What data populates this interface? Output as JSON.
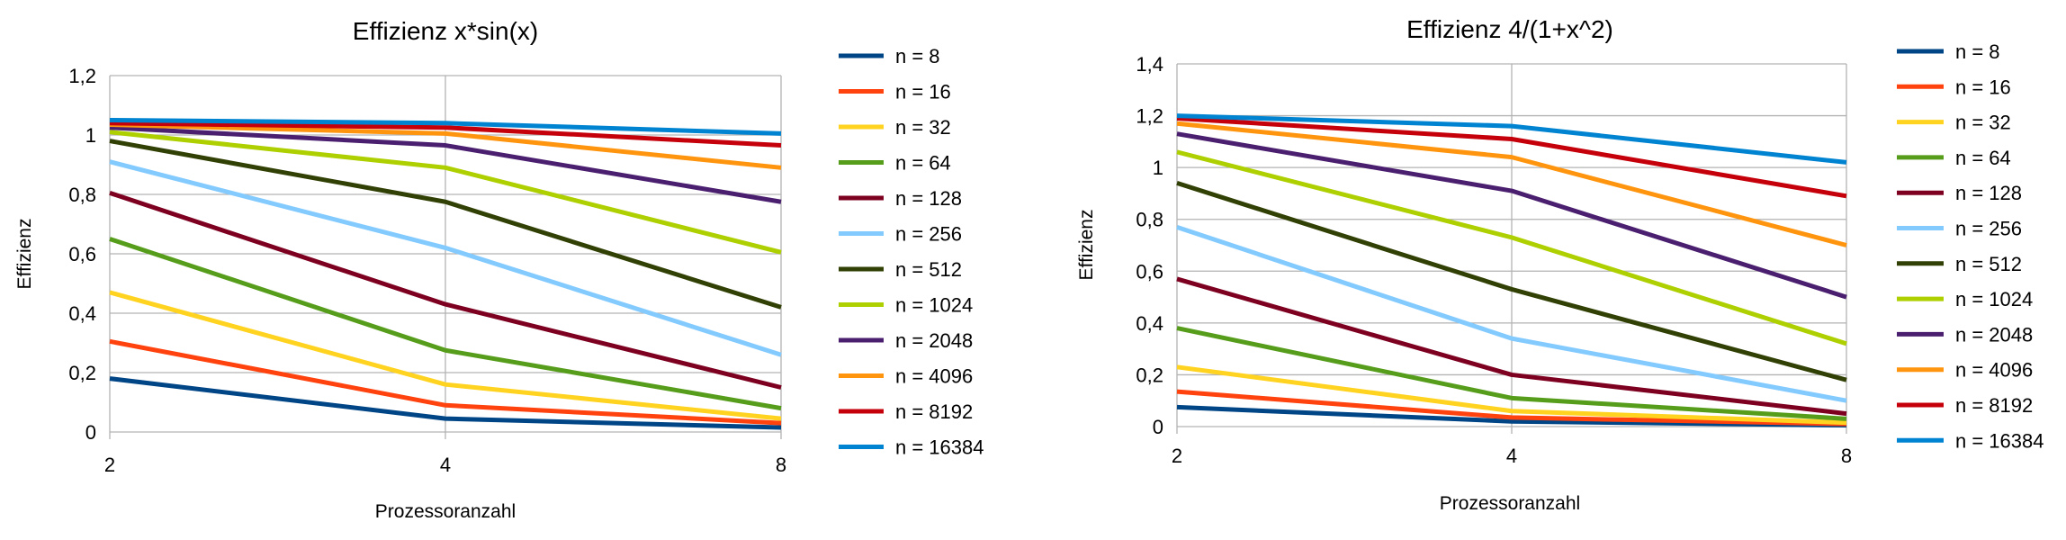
{
  "chart_data": [
    {
      "type": "line",
      "title": "Effizienz x*sin(x)",
      "xlabel": "Prozessoranzahl",
      "ylabel": "Effizienz",
      "categories": [
        "2",
        "4",
        "8"
      ],
      "ylim": [
        0,
        1.2
      ],
      "yticks": [
        "0",
        "0,2",
        "0,4",
        "0,6",
        "0,8",
        "1",
        "1,2"
      ],
      "grid": true,
      "legend": "right",
      "series": [
        {
          "name": "n = 8",
          "color": "#004586",
          "values": [
            0.18,
            0.045,
            0.015
          ]
        },
        {
          "name": "n = 16",
          "color": "#ff420e",
          "values": [
            0.305,
            0.09,
            0.03
          ]
        },
        {
          "name": "n = 32",
          "color": "#ffd320",
          "values": [
            0.47,
            0.16,
            0.045
          ]
        },
        {
          "name": "n = 64",
          "color": "#579d1c",
          "values": [
            0.65,
            0.275,
            0.08
          ]
        },
        {
          "name": "n = 128",
          "color": "#7e0021",
          "values": [
            0.805,
            0.43,
            0.15
          ]
        },
        {
          "name": "n = 256",
          "color": "#83caff",
          "values": [
            0.91,
            0.62,
            0.26
          ]
        },
        {
          "name": "n = 512",
          "color": "#314004",
          "values": [
            0.98,
            0.775,
            0.42
          ]
        },
        {
          "name": "n = 1024",
          "color": "#aecf00",
          "values": [
            1.01,
            0.89,
            0.605
          ]
        },
        {
          "name": "n = 2048",
          "color": "#4b1f6f",
          "values": [
            1.025,
            0.965,
            0.775
          ]
        },
        {
          "name": "n = 4096",
          "color": "#ff950e",
          "values": [
            1.035,
            1.005,
            0.89
          ]
        },
        {
          "name": "n = 8192",
          "color": "#c5000b",
          "values": [
            1.04,
            1.025,
            0.965
          ]
        },
        {
          "name": "n = 16384",
          "color": "#0084d1",
          "values": [
            1.05,
            1.04,
            1.005
          ]
        }
      ]
    },
    {
      "type": "line",
      "title": "Effizienz 4/(1+x^2)",
      "xlabel": "Prozessoranzahl",
      "ylabel": "Effizienz",
      "categories": [
        "2",
        "4",
        "8"
      ],
      "ylim": [
        0,
        1.4
      ],
      "yticks": [
        "0",
        "0,2",
        "0,4",
        "0,6",
        "0,8",
        "1",
        "1,2",
        "1,4"
      ],
      "grid": true,
      "legend": "right",
      "series": [
        {
          "name": "n = 8",
          "color": "#004586",
          "values": [
            0.075,
            0.02,
            0.005
          ]
        },
        {
          "name": "n = 16",
          "color": "#ff420e",
          "values": [
            0.135,
            0.035,
            0.01
          ]
        },
        {
          "name": "n = 32",
          "color": "#ffd320",
          "values": [
            0.23,
            0.06,
            0.015
          ]
        },
        {
          "name": "n = 64",
          "color": "#579d1c",
          "values": [
            0.38,
            0.11,
            0.03
          ]
        },
        {
          "name": "n = 128",
          "color": "#7e0021",
          "values": [
            0.57,
            0.2,
            0.05
          ]
        },
        {
          "name": "n = 256",
          "color": "#83caff",
          "values": [
            0.77,
            0.34,
            0.1
          ]
        },
        {
          "name": "n = 512",
          "color": "#314004",
          "values": [
            0.94,
            0.53,
            0.18
          ]
        },
        {
          "name": "n = 1024",
          "color": "#aecf00",
          "values": [
            1.06,
            0.73,
            0.32
          ]
        },
        {
          "name": "n = 2048",
          "color": "#4b1f6f",
          "values": [
            1.13,
            0.91,
            0.5
          ]
        },
        {
          "name": "n = 4096",
          "color": "#ff950e",
          "values": [
            1.17,
            1.04,
            0.7
          ]
        },
        {
          "name": "n = 8192",
          "color": "#c5000b",
          "values": [
            1.19,
            1.11,
            0.89
          ]
        },
        {
          "name": "n = 16384",
          "color": "#0084d1",
          "values": [
            1.2,
            1.16,
            1.02
          ]
        }
      ]
    }
  ]
}
